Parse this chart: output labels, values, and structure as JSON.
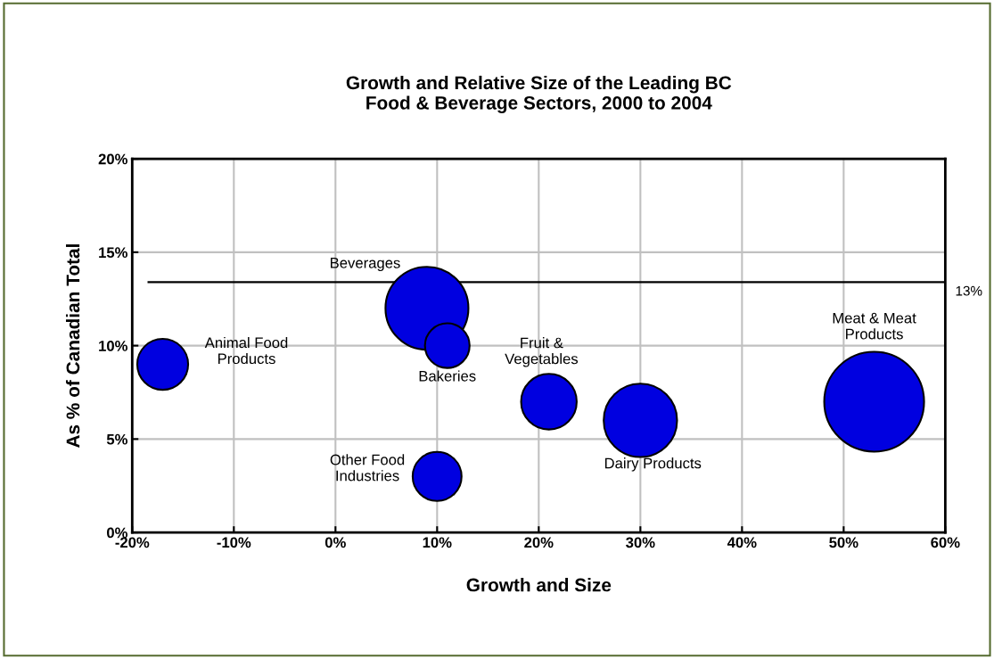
{
  "chart_data": {
    "type": "bubble",
    "title": "Growth and Relative Size of the Leading BC\nFood & Beverage Sectors, 2000 to 2004",
    "xlabel": "Growth and Size",
    "ylabel": "As % of Canadian Total",
    "series": [
      {
        "name": "Animal Food\nProducts",
        "color": "#0000e0",
        "x": [
          -17
        ],
        "values": [
          9
        ],
        "sizes": [
          0.26
        ]
      },
      {
        "name": "Beverages",
        "color": "#0000e0",
        "x": [
          9
        ],
        "values": [
          12
        ],
        "sizes": [
          0.69
        ]
      },
      {
        "name": "Bakeries",
        "color": "#0000e0",
        "x": [
          11
        ],
        "values": [
          10
        ],
        "sizes": [
          0.2
        ]
      },
      {
        "name": "Other Food\nIndustries",
        "color": "#0000e0",
        "x": [
          10
        ],
        "values": [
          3
        ],
        "sizes": [
          0.24
        ]
      },
      {
        "name": "Fruit &\nVegetables",
        "color": "#0000e0",
        "x": [
          21
        ],
        "values": [
          7
        ],
        "sizes": [
          0.31
        ]
      },
      {
        "name": "Dairy Products",
        "color": "#0000e0",
        "x": [
          30
        ],
        "values": [
          6
        ],
        "sizes": [
          0.54
        ]
      },
      {
        "name": "Meat & Meat\nProducts",
        "color": "#0000e0",
        "x": [
          53
        ],
        "values": [
          7
        ],
        "sizes": [
          1
        ]
      }
    ],
    "xlim": [
      -20,
      60
    ],
    "xticks": [
      {
        "value": -20,
        "label": "-20%"
      },
      {
        "value": -10,
        "label": "-10%"
      },
      {
        "value": 0,
        "label": "0%"
      },
      {
        "value": 10,
        "label": "10%"
      },
      {
        "value": 20,
        "label": "20%"
      },
      {
        "value": 30,
        "label": "30%"
      },
      {
        "value": 40,
        "label": "40%"
      },
      {
        "value": 50,
        "label": "50%"
      },
      {
        "value": 60,
        "label": "60%"
      }
    ],
    "ylim": [
      0,
      20
    ],
    "yticks": [
      {
        "value": 0,
        "label": "0%"
      },
      {
        "value": 5,
        "label": "5%"
      },
      {
        "value": 10,
        "label": "10%"
      },
      {
        "value": 15,
        "label": "15%"
      },
      {
        "value": 20,
        "label": "20%"
      }
    ],
    "ref_lines": [
      {
        "axis": "y",
        "value": 13.4,
        "label": "13%",
        "color": "#000000"
      }
    ],
    "grid": true,
    "legend": false
  }
}
